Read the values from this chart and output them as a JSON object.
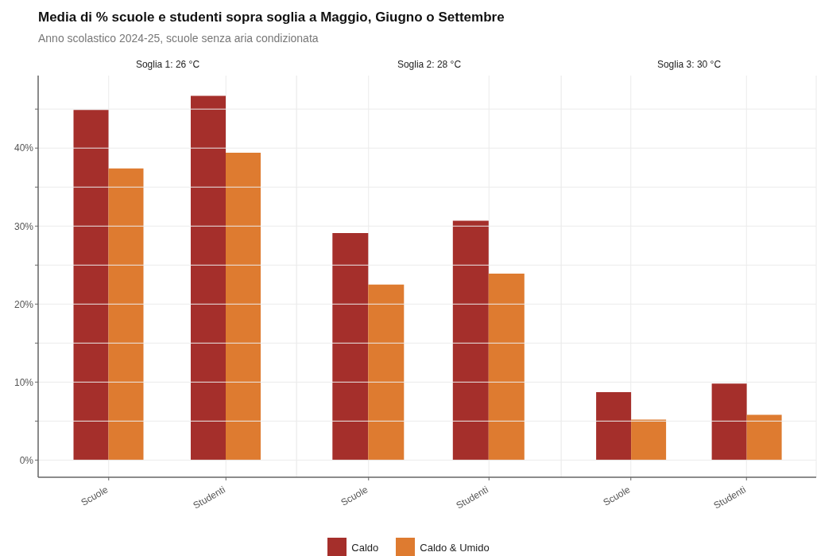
{
  "chart_data": [
    {
      "type": "bar",
      "title": "Media di % scuole e studenti sopra soglia a Maggio, Giugno o Settembre",
      "subtitle": "Anno scolastico 2024-25, scuole senza aria condizionata",
      "annotations": [
        "Soglia 1: 26 °C"
      ],
      "categories": [
        "Scuole",
        "Studenti"
      ],
      "series": [
        {
          "color": "#a52f2b",
          "values": [
            44.9,
            46.7
          ]
        },
        {
          "color": "#de7b30",
          "values": [
            37.4,
            39.4
          ]
        }
      ],
      "ylim": [
        -2.2,
        49.3
      ],
      "yticks": [
        {
          "value": 0,
          "label": "0%"
        },
        {
          "value": 5,
          "label": null
        },
        {
          "value": 10,
          "label": "10%"
        },
        {
          "value": 15,
          "label": null
        },
        {
          "value": 20,
          "label": "20%"
        },
        {
          "value": 25,
          "label": null
        },
        {
          "value": 30,
          "label": "30%"
        },
        {
          "value": 35,
          "label": null
        },
        {
          "value": 40,
          "label": "40%"
        },
        {
          "value": 45,
          "label": null
        }
      ],
      "grid": true
    },
    {
      "type": "bar",
      "annotations": [
        "Soglia 2: 28 °C"
      ],
      "categories": [
        "Scuole",
        "Studenti"
      ],
      "series": [
        {
          "name": "Caldo",
          "color": "#a52f2b",
          "values": [
            29.1,
            30.7
          ]
        },
        {
          "name": "Caldo & Umido",
          "color": "#de7b30",
          "values": [
            22.5,
            23.9
          ]
        }
      ],
      "ylim": [
        -2.2,
        49.3
      ],
      "yticks": [
        0,
        5,
        10,
        15,
        20,
        25,
        30,
        35,
        40,
        45
      ],
      "grid": true,
      "tick_labels": "x",
      "legend": "bottom"
    },
    {
      "type": "bar",
      "annotations": [
        "Soglia 3: 30 °C"
      ],
      "categories": [
        "Scuole",
        "Studenti"
      ],
      "series": [
        {
          "color": "#a52f2b",
          "values": [
            8.7,
            9.8
          ]
        },
        {
          "color": "#de7b30",
          "values": [
            5.2,
            5.8
          ]
        }
      ],
      "ylim": [
        -2.2,
        49.3
      ],
      "yticks": [
        0,
        5,
        10,
        15,
        20,
        25,
        30,
        35,
        40,
        45
      ],
      "grid": true,
      "tick_labels": "x"
    }
  ]
}
